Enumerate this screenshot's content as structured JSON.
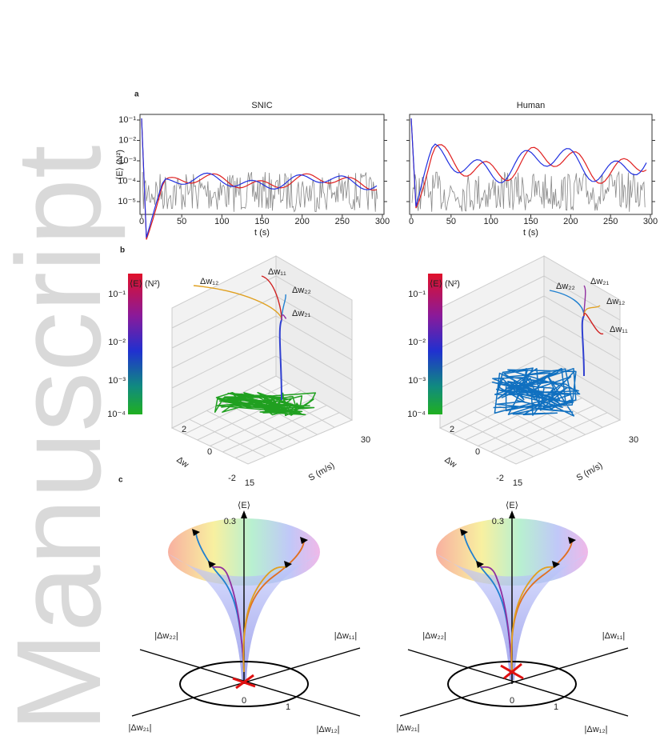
{
  "watermark": "Manuscript",
  "panels": [
    {
      "label": "a",
      "plots": [
        {
          "title": "SNIC",
          "ylabel": "⟨E⟩ (N²)",
          "yticks": [
            "10⁻¹",
            "10⁻²",
            "10⁻³",
            "10⁻⁴",
            "10⁻⁵"
          ],
          "xticks": [
            "0",
            "50",
            "100",
            "150",
            "200",
            "250",
            "300"
          ],
          "xlabel": "t (s)"
        },
        {
          "title": "Human",
          "xticks": [
            "0",
            "50",
            "100",
            "150",
            "200",
            "250",
            "300"
          ],
          "xlabel": "t (s)"
        }
      ]
    },
    {
      "label": "b",
      "plots": [
        {
          "colorbar_label": "⟨E⟩ (N²)",
          "colorbar_ticks": [
            "10⁻¹",
            "10⁻²",
            "10⁻³",
            "10⁻⁴"
          ],
          "curve_labels": [
            "Δw₁₂",
            "Δw₁₁",
            "Δw₂₂",
            "Δw₂₁"
          ],
          "dw_label": "Δw",
          "dw_ticks": [
            "2",
            "0",
            "-2"
          ],
          "s_label": "S (m/s)",
          "s_ticks": [
            "15",
            "30"
          ]
        },
        {
          "colorbar_label": "⟨E⟩ (N²)",
          "colorbar_ticks": [
            "10⁻¹",
            "10⁻²",
            "10⁻³",
            "10⁻⁴"
          ],
          "curve_labels": [
            "Δw₂₂",
            "Δw₂₁",
            "Δw₁₂",
            "Δw₁₁"
          ],
          "dw_label": "Δw",
          "dw_ticks": [
            "2",
            "0",
            "-2"
          ],
          "s_label": "S (m/s)",
          "s_ticks": [
            "15",
            "30"
          ]
        }
      ]
    },
    {
      "label": "c",
      "plots": [
        {
          "axis_label": "⟨E⟩",
          "height_tick": "0.3",
          "labels": [
            "|Δw₂₂|",
            "|Δw₁₁|",
            "|Δw₂₁|",
            "|Δw₁₂|"
          ],
          "origin": "0",
          "radius_tick": "1"
        },
        {
          "axis_label": "⟨E⟩",
          "height_tick": "0.3",
          "labels": [
            "|Δw₂₂|",
            "|Δw₁₁|",
            "|Δw₂₁|",
            "|Δw₁₂|"
          ],
          "origin": "0",
          "radius_tick": "1"
        }
      ]
    }
  ]
}
